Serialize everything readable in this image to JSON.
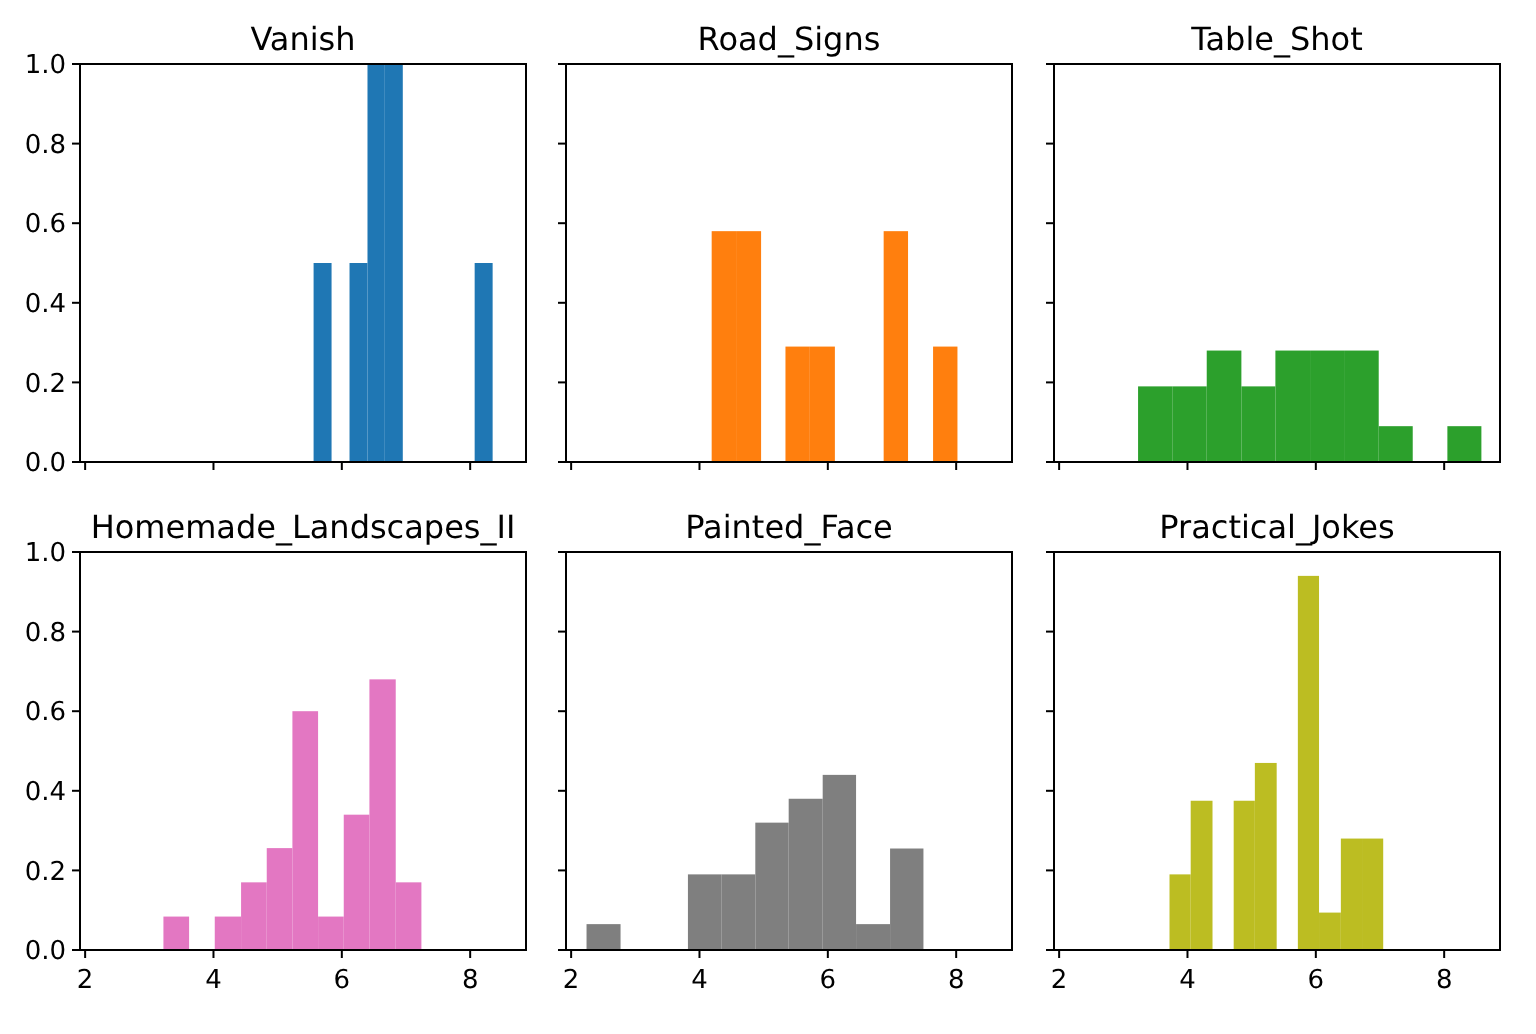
{
  "chart_data": [
    {
      "type": "histogram",
      "title": "Vanish",
      "color": "#1f77b4",
      "bins": [
        5.56,
        5.84,
        6.12,
        6.4,
        6.67,
        6.95,
        8.07,
        8.35
      ],
      "values": [
        0.5,
        0,
        0.5,
        1.0,
        1.0,
        0,
        0.5
      ],
      "xlim": [
        1.92,
        8.87
      ],
      "ylim": [
        0,
        1
      ],
      "xticks": [
        2,
        4,
        6,
        8
      ],
      "yticks": [
        {
          "value": 0,
          "label": "0.0"
        },
        {
          "value": 0.2,
          "label": "0.2"
        },
        {
          "value": 0.4,
          "label": "0.4"
        },
        {
          "value": 0.6,
          "label": "0.6"
        },
        {
          "value": 0.8,
          "label": "0.8"
        },
        {
          "value": 1,
          "label": "1.0"
        }
      ],
      "tick_labels": "y"
    },
    {
      "type": "histogram",
      "title": "Road_Signs",
      "color": "#ff7f0e",
      "bins": [
        4.19,
        4.57,
        4.96,
        5.34,
        5.72,
        6.11,
        6.87,
        7.25,
        7.64,
        8.02
      ],
      "values": [
        0.58,
        0.58,
        0,
        0.29,
        0.29,
        0,
        0.58,
        0,
        0.29
      ],
      "xlim": [
        1.92,
        8.87
      ],
      "ylim": [
        0,
        1
      ],
      "xticks": [
        2,
        4,
        6,
        8
      ],
      "yticks": [
        0,
        0.2,
        0.4,
        0.6,
        0.8,
        1
      ],
      "tick_labels": false
    },
    {
      "type": "histogram",
      "title": "Table_Shot",
      "color": "#2ca02c",
      "bins": [
        3.23,
        3.77,
        4.3,
        4.84,
        5.37,
        5.91,
        6.44,
        6.98,
        7.51,
        8.05,
        8.58
      ],
      "values": [
        0.19,
        0.19,
        0.28,
        0.19,
        0.28,
        0.28,
        0.28,
        0.09,
        0,
        0.09
      ],
      "xlim": [
        1.92,
        8.87
      ],
      "ylim": [
        0,
        1
      ],
      "xticks": [
        2,
        4,
        6,
        8
      ],
      "yticks": [
        0,
        0.2,
        0.4,
        0.6,
        0.8,
        1
      ],
      "tick_labels": false
    },
    {
      "type": "histogram",
      "title": "Homemade_Landscapes_II",
      "color": "#e377c2",
      "bins": [
        3.22,
        3.62,
        4.02,
        4.43,
        4.83,
        5.23,
        5.63,
        6.03,
        6.43,
        6.84,
        7.24
      ],
      "values": [
        0.084,
        0,
        0.084,
        0.17,
        0.256,
        0.6,
        0.084,
        0.34,
        0.68,
        0.17
      ],
      "xlim": [
        1.92,
        8.87
      ],
      "ylim": [
        0,
        1
      ],
      "xticks": [
        2,
        4,
        6,
        8
      ],
      "yticks": [
        {
          "value": 0,
          "label": "0.0"
        },
        {
          "value": 0.2,
          "label": "0.2"
        },
        {
          "value": 0.4,
          "label": "0.4"
        },
        {
          "value": 0.6,
          "label": "0.6"
        },
        {
          "value": 0.8,
          "label": "0.8"
        },
        {
          "value": 1,
          "label": "1.0"
        }
      ]
    },
    {
      "type": "histogram",
      "title": "Painted_Face",
      "color": "#7f7f7f",
      "bins": [
        2.24,
        2.77,
        3.82,
        4.34,
        4.87,
        5.39,
        5.92,
        6.44,
        6.97,
        7.49
      ],
      "values": [
        0.065,
        0,
        0.19,
        0.19,
        0.32,
        0.38,
        0.44,
        0.065,
        0.255
      ],
      "xlim": [
        1.92,
        8.87
      ],
      "ylim": [
        0,
        1
      ],
      "xticks": [
        2,
        4,
        6,
        8
      ],
      "yticks": [
        0,
        0.2,
        0.4,
        0.6,
        0.8,
        1
      ],
      "tick_labels": "x"
    },
    {
      "type": "histogram",
      "title": "Practical_Jokes",
      "color": "#bcbd22",
      "bins": [
        3.72,
        4.05,
        4.39,
        4.72,
        5.05,
        5.39,
        5.72,
        6.05,
        6.39,
        6.72,
        7.05
      ],
      "values": [
        0.19,
        0.375,
        0,
        0.375,
        0.47,
        0,
        0.94,
        0.094,
        0.28,
        0.28
      ],
      "xlim": [
        1.92,
        8.87
      ],
      "ylim": [
        0,
        1
      ],
      "xticks": [
        2,
        4,
        6,
        8
      ],
      "yticks": [
        0,
        0.2,
        0.4,
        0.6,
        0.8,
        1
      ],
      "tick_labels": "x"
    }
  ]
}
